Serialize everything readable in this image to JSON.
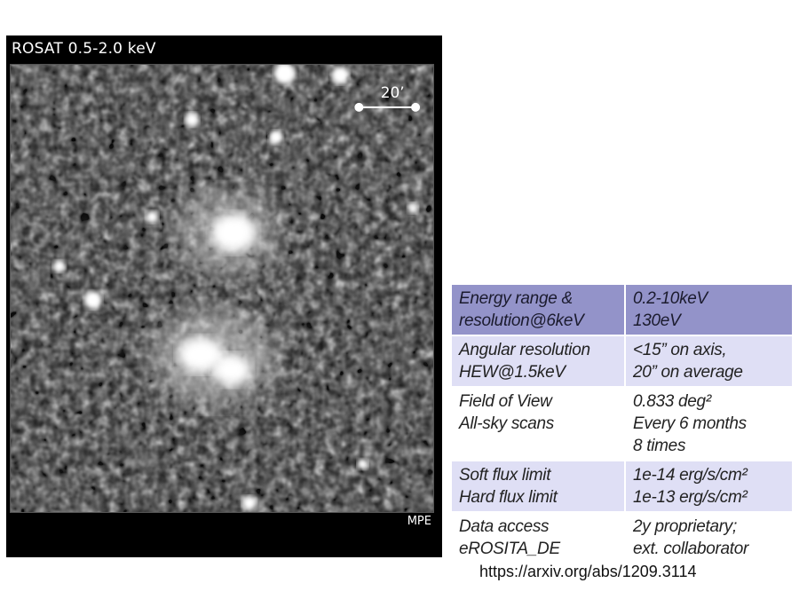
{
  "image_panel": {
    "label": "ROSAT 0.5-2.0 keV",
    "scale_bar_label": "20’",
    "credit": "MPE"
  },
  "spec_table": {
    "rows": [
      {
        "style": "head",
        "left": [
          "Energy range &",
          "resolution@6keV"
        ],
        "right": [
          "0.2-10keV",
          "130eV"
        ]
      },
      {
        "style": "light",
        "left": [
          "Angular resolution",
          "HEW@1.5keV"
        ],
        "right": [
          "<15” on axis,",
          "20” on average"
        ]
      },
      {
        "style": "white",
        "left": [
          "Field of View",
          "All-sky scans"
        ],
        "right": [
          "0.833 deg²",
          "Every 6 months",
          "8 times"
        ]
      },
      {
        "style": "light",
        "left": [
          "Soft flux limit",
          "Hard flux limit"
        ],
        "right": [
          "1e-14 erg/s/cm²",
          "1e-13 erg/s/cm²"
        ]
      },
      {
        "style": "white",
        "left": [
          "Data access",
          "eROSITA_DE"
        ],
        "right": [
          "2y proprietary;",
          "ext. collaborator"
        ]
      }
    ]
  },
  "source_link": "https://arxiv.org/abs/1209.3114",
  "colors": {
    "header_row": "#9393c9",
    "light_row": "#dfdff5",
    "panel": "#000000"
  }
}
